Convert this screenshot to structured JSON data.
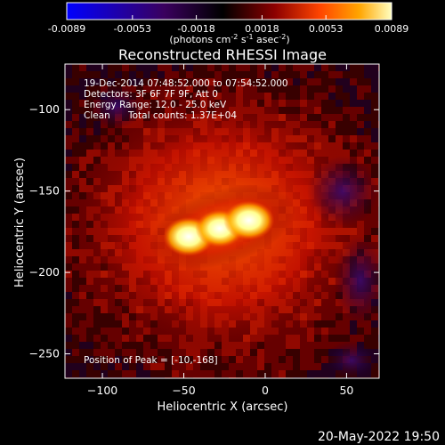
{
  "colorbar": {
    "ticks": [
      "-0.0089",
      "-0.0053",
      "-0.0018",
      "0.0018",
      "0.0053",
      "0.0089"
    ],
    "range": [
      -0.0089,
      0.0089
    ],
    "unit_prefix": "(photons cm",
    "unit_exp1": "-2",
    "unit_mid": " s",
    "unit_exp2": "-1",
    "unit_mid2": " asec",
    "unit_exp3": "-2",
    "unit_suffix": ")"
  },
  "annotations": {
    "time_range": "19-Dec-2014 07:48:52.000 to 07:54:52.000",
    "detectors": "Detectors: 3F 6F 7F 9F, Att 0",
    "energy": "Energy Range: 12.0 - 25.0 keV",
    "clean": "Clean",
    "counts": "Total counts: 1.37E+04",
    "peak": "Position of Peak = [-10,-168]"
  },
  "date_stamp": "20-May-2022 19:50",
  "colors": {
    "colormap": [
      "#0000ff",
      "#3a005e",
      "#000000",
      "#8c0000",
      "#ff4500",
      "#ffa500",
      "#ffff80",
      "#ffffff"
    ]
  },
  "chart_data": {
    "type": "heatmap",
    "title": "Reconstructed RHESSI Image",
    "xlabel": "Heliocentric X (arcsec)",
    "ylabel": "Heliocentric Y (arcsec)",
    "xlim": [
      -123,
      70
    ],
    "ylim": [
      -265,
      -72
    ],
    "x_ticks": [
      -100,
      -50,
      0,
      50
    ],
    "y_ticks": [
      -100,
      -150,
      -200,
      -250
    ],
    "peak": [
      -10,
      -168
    ],
    "sources": [
      {
        "x": -47,
        "y": -178,
        "value": 0.0089
      },
      {
        "x": -28,
        "y": -173,
        "value": 0.0085
      },
      {
        "x": -10,
        "y": -168,
        "value": 0.0089
      }
    ]
  }
}
